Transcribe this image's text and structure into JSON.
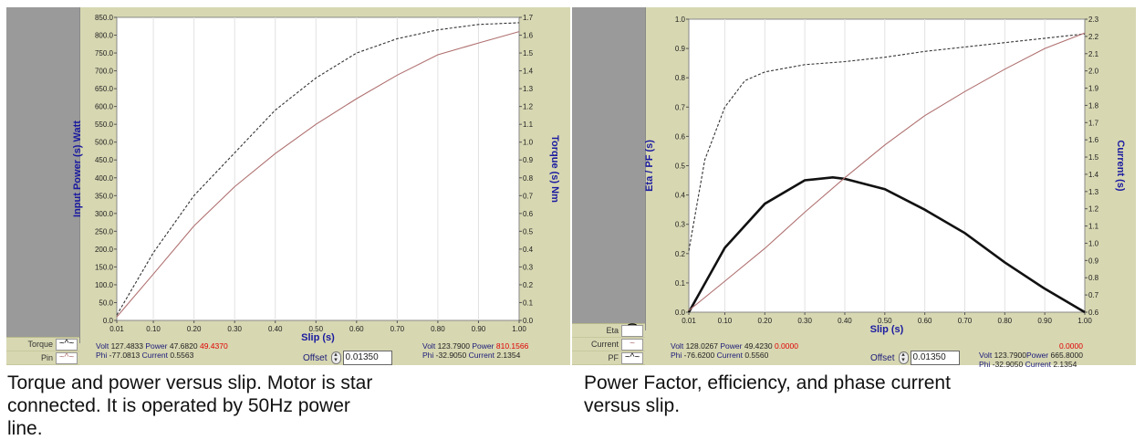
{
  "left": {
    "legend": [
      {
        "label": "Torque",
        "glyph": "~^~",
        "style": "dashed"
      },
      {
        "label": "Pin",
        "glyph": "~^~",
        "style": "solid"
      }
    ],
    "chart_data": {
      "type": "line",
      "xlabel": "Slip (s)",
      "ylabel": "Input Power (s) Watt",
      "y2label": "Torque (s) Nm",
      "xlim": [
        0.01,
        1.0
      ],
      "ylim": [
        0,
        850
      ],
      "y2lim": [
        0,
        1.7
      ],
      "x_ticks": [
        "0.01",
        "0.10",
        "0.20",
        "0.30",
        "0.40",
        "0.50",
        "0.60",
        "0.70",
        "0.80",
        "0.90",
        "1.00"
      ],
      "y_ticks": [
        "850.0",
        "800.0",
        "750.0",
        "700.0",
        "650.0",
        "600.0",
        "550.0",
        "500.0",
        "450.0",
        "400.0",
        "350.0",
        "300.0",
        "250.0",
        "200.0",
        "150.0",
        "100.0",
        "50.0",
        "0.0"
      ],
      "y2_ticks": [
        "1.7",
        "1.6",
        "1.5",
        "1.4",
        "1.3",
        "1.2",
        "1.1",
        "1.0",
        "0.9",
        "0.8",
        "0.7",
        "0.6",
        "0.5",
        "0.4",
        "0.3",
        "0.2",
        "0.1",
        "0.0"
      ],
      "grid": "vertical",
      "series": [
        {
          "axis": "right",
          "color": "#333333",
          "dash": true,
          "x": [
            0.01,
            0.1,
            0.2,
            0.3,
            0.4,
            0.5,
            0.6,
            0.7,
            0.8,
            0.9,
            1.0
          ],
          "values": [
            0.03,
            0.38,
            0.7,
            0.94,
            1.18,
            1.36,
            1.5,
            1.58,
            1.63,
            1.66,
            1.67
          ]
        },
        {
          "axis": "left",
          "color": "#b07070",
          "dash": false,
          "x": [
            0.01,
            0.1,
            0.2,
            0.3,
            0.4,
            0.5,
            0.6,
            0.7,
            0.8,
            0.9,
            1.0
          ],
          "values": [
            10,
            130,
            265,
            375,
            468,
            550,
            622,
            688,
            745,
            778,
            810
          ]
        }
      ]
    },
    "readout_left": {
      "volt_label": "Volt",
      "volt": "127.4833",
      "power_label": "Power",
      "power": "47.6820",
      "power_red": "49.4370",
      "phi_label": "Phi",
      "phi": "-77.0813",
      "current_label": "Current",
      "current": "0.5563"
    },
    "readout_right": {
      "volt_label": "Volt",
      "volt": "123.7900",
      "power_label": "Power",
      "power_red": "810.1566",
      "phi_label": "Phi",
      "phi": "-32.9050",
      "current_label": "Current",
      "current": "2.1354"
    },
    "offset_label": "Offset",
    "offset_value": "0.01350",
    "caption": "Torque and power versus slip. Motor is star connected. It is operated by 50Hz power line."
  },
  "right": {
    "legend": [
      {
        "label": "Eta",
        "glyph": "⁀",
        "style": "bold"
      },
      {
        "label": "Current",
        "glyph": "~",
        "style": "solid"
      },
      {
        "label": "PF",
        "glyph": "~^~",
        "style": "dashed"
      }
    ],
    "chart_data": {
      "type": "line",
      "xlabel": "Slip (s)",
      "ylabel": "Eta / PF (s)",
      "y2label": "Current (s)",
      "xlim": [
        0.01,
        1.0
      ],
      "ylim": [
        0,
        1.0
      ],
      "y2lim": [
        0.6,
        2.3
      ],
      "x_ticks": [
        "0.01",
        "0.10",
        "0.20",
        "0.30",
        "0.40",
        "0.50",
        "0.60",
        "0.70",
        "0.80",
        "0.90",
        "1.00"
      ],
      "y_ticks": [
        "1.0",
        "0.9",
        "0.8",
        "0.7",
        "0.6",
        "0.5",
        "0.4",
        "0.3",
        "0.2",
        "0.1",
        "0.0"
      ],
      "y2_ticks": [
        "2.3",
        "2.2",
        "2.1",
        "2.0",
        "1.9",
        "1.8",
        "1.7",
        "1.6",
        "1.5",
        "1.4",
        "1.3",
        "1.2",
        "1.1",
        "1.0",
        "0.9",
        "0.8",
        "0.7",
        "0.6"
      ],
      "grid": "vertical",
      "series": [
        {
          "axis": "left",
          "color": "#111111",
          "dash": false,
          "bold": true,
          "x": [
            0.01,
            0.1,
            0.2,
            0.3,
            0.37,
            0.4,
            0.5,
            0.6,
            0.7,
            0.8,
            0.9,
            1.0
          ],
          "values": [
            0.0,
            0.22,
            0.37,
            0.45,
            0.46,
            0.455,
            0.42,
            0.35,
            0.27,
            0.17,
            0.08,
            0.0
          ]
        },
        {
          "axis": "left",
          "color": "#333333",
          "dash": true,
          "x": [
            0.01,
            0.05,
            0.1,
            0.15,
            0.2,
            0.3,
            0.4,
            0.5,
            0.6,
            0.7,
            0.8,
            0.9,
            1.0
          ],
          "values": [
            0.21,
            0.52,
            0.7,
            0.79,
            0.82,
            0.845,
            0.855,
            0.87,
            0.89,
            0.905,
            0.92,
            0.935,
            0.95
          ]
        },
        {
          "axis": "right",
          "color": "#b07070",
          "dash": false,
          "x": [
            0.01,
            0.1,
            0.2,
            0.3,
            0.4,
            0.5,
            0.6,
            0.7,
            0.8,
            0.9,
            1.0
          ],
          "values": [
            0.61,
            0.78,
            0.97,
            1.18,
            1.38,
            1.57,
            1.74,
            1.88,
            2.01,
            2.13,
            2.22
          ]
        }
      ]
    },
    "readout_left": {
      "volt_label": "Volt",
      "volt": "128.0267",
      "power_label": "Power",
      "power": "49.4230",
      "power_red": "0.0000",
      "phi_label": "Phi",
      "phi": "-76.6200",
      "current_label": "Current",
      "current": "0.5560"
    },
    "readout_right": {
      "volt_label": "Volt",
      "volt": "123.7900",
      "power_label": "Power",
      "power": "665.8000",
      "power_red": "0.0000",
      "phi_label": "Phi",
      "phi": "-32.9050",
      "current_label": "Current",
      "current": "2.1354"
    },
    "offset_label": "Offset",
    "offset_value": "0.01350",
    "caption": "Power Factor, efficiency, and phase current versus slip."
  }
}
